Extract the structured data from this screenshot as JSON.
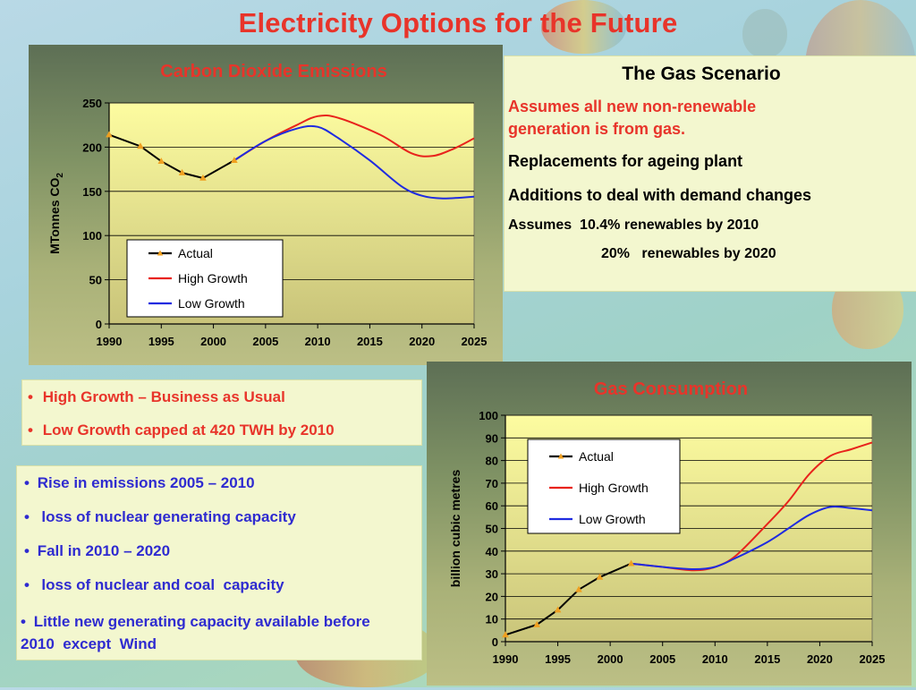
{
  "slide": {
    "title": "Electricity Options for the Future"
  },
  "gas_scenario": {
    "heading": "The Gas Scenario",
    "assumption": "Assumes all new non-renewable generation is from gas.",
    "line1": "Replacements for ageing plant",
    "line2": "Additions to deal with demand changes",
    "renew1": "Assumes  10.4% renewables by 2010",
    "renew2": "20%   renewables by 2020"
  },
  "growth_notes": {
    "items": [
      "High Growth – Business as Usual",
      "Low Growth capped at 420 TWH by 2010"
    ]
  },
  "emission_notes": {
    "items": [
      "Rise in emissions 2005 – 2010",
      " loss of nuclear generating capacity",
      "Fall in 2010 – 2020",
      " loss of nuclear and coal  capacity",
      "Little new generating capacity available before 2010  except  Wind"
    ]
  },
  "colors": {
    "title_red": "#e8342a",
    "high_growth": "#e8231c",
    "low_growth": "#1f2be0",
    "actual": "#000000",
    "marker": "#f0a020",
    "plot_top": "#fdfca0",
    "plot_bottom": "#c9c47a"
  },
  "chart_data": [
    {
      "type": "line",
      "title": "Carbon Dioxide Emissions",
      "ylabel": "MTonnes CO2",
      "ylabel_main": "MTonnes CO",
      "ylabel_sub": "2",
      "xlabel": "",
      "xlim": [
        1990,
        2025
      ],
      "ylim": [
        0,
        250
      ],
      "x_ticks": [
        1990,
        1995,
        2000,
        2005,
        2010,
        2015,
        2020,
        2025
      ],
      "y_ticks": [
        0,
        50,
        100,
        150,
        200,
        250
      ],
      "legend": "inside-lower-left",
      "grid": true,
      "series": [
        {
          "name": "Actual",
          "color": "#000000",
          "marker": true,
          "x": [
            1990,
            1993,
            1995,
            1997,
            1999,
            2002
          ],
          "y": [
            214,
            201,
            184,
            171,
            165,
            185
          ]
        },
        {
          "name": "High Growth",
          "color": "#e8231c",
          "marker": false,
          "x": [
            2002,
            2005,
            2008,
            2010,
            2012,
            2016,
            2019,
            2021,
            2023,
            2025
          ],
          "y": [
            185,
            207,
            225,
            235,
            233,
            214,
            193,
            190,
            198,
            210
          ]
        },
        {
          "name": "Low Growth",
          "color": "#1f2be0",
          "marker": false,
          "x": [
            2002,
            2005,
            2008,
            2010,
            2012,
            2015,
            2018,
            2020,
            2022,
            2025
          ],
          "y": [
            185,
            207,
            221,
            223,
            210,
            185,
            156,
            145,
            142,
            144
          ]
        }
      ]
    },
    {
      "type": "line",
      "title": "Gas Consumption",
      "ylabel": "billion cubic metres",
      "xlabel": "",
      "xlim": [
        1990,
        2025
      ],
      "ylim": [
        0,
        100
      ],
      "x_ticks": [
        1990,
        1995,
        2000,
        2005,
        2010,
        2015,
        2020,
        2025
      ],
      "y_ticks": [
        0,
        10,
        20,
        30,
        40,
        50,
        60,
        70,
        80,
        90,
        100
      ],
      "legend": "inside-upper-left",
      "grid": true,
      "series": [
        {
          "name": "Actual",
          "color": "#000000",
          "marker": true,
          "x": [
            1990,
            1993,
            1995,
            1997,
            1999,
            2002
          ],
          "y": [
            3,
            7.5,
            14,
            23,
            28.5,
            34.5
          ]
        },
        {
          "name": "High Growth",
          "color": "#e8231c",
          "marker": false,
          "x": [
            2002,
            2005,
            2008,
            2010,
            2012,
            2015,
            2017,
            2019,
            2021,
            2023,
            2025
          ],
          "y": [
            34.5,
            33,
            31.5,
            33,
            38,
            52,
            62,
            74,
            82,
            85,
            88
          ]
        },
        {
          "name": "Low Growth",
          "color": "#1f2be0",
          "marker": false,
          "x": [
            2002,
            2005,
            2008,
            2010,
            2012,
            2015,
            2017,
            2019,
            2021,
            2023,
            2025
          ],
          "y": [
            34.5,
            33,
            32,
            33,
            37,
            44,
            50,
            56,
            59.5,
            59,
            58
          ]
        }
      ]
    }
  ]
}
